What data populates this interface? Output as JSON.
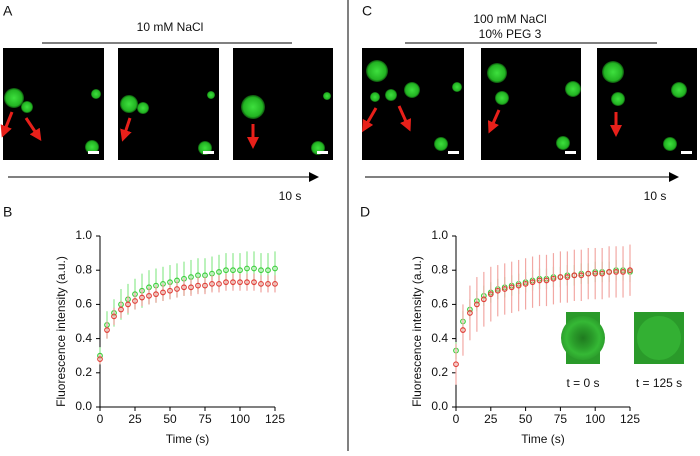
{
  "panels": [
    {
      "label": "A",
      "title": [
        "10 mM NaCl"
      ],
      "time_label": "10 s"
    },
    {
      "label": "C",
      "title": [
        "100 mM NaCl",
        "10% PEG 3"
      ],
      "time_label": "10 s"
    }
  ],
  "chart_data": [
    {
      "type": "scatter",
      "panel_label": "B",
      "y_label": "Fluorescence intensity (a.u.)",
      "x_label": "Time (s)",
      "xlim": [
        0,
        125
      ],
      "xticks": [
        0,
        25,
        50,
        75,
        100,
        125
      ],
      "ylim": [
        0,
        1
      ],
      "yticks": [
        {
          "value": 0,
          "label": "0.0"
        },
        {
          "value": 0.2,
          "label": "0.2"
        },
        {
          "value": 0.4,
          "label": "0.4"
        },
        {
          "value": 0.6,
          "label": "0.6"
        },
        {
          "value": 0.8,
          "label": "0.8"
        },
        {
          "value": 1,
          "label": "1.0"
        }
      ],
      "x": [
        0,
        5,
        10,
        15,
        20,
        25,
        30,
        35,
        40,
        45,
        50,
        55,
        60,
        65,
        70,
        75,
        80,
        85,
        90,
        95,
        100,
        105,
        110,
        115,
        120,
        125
      ],
      "series": [
        {
          "color": "#3fcf3f",
          "error_color": "#8ee88e",
          "values": [
            0.3,
            0.48,
            0.55,
            0.6,
            0.63,
            0.66,
            0.68,
            0.7,
            0.71,
            0.72,
            0.73,
            0.74,
            0.75,
            0.76,
            0.77,
            0.77,
            0.78,
            0.79,
            0.8,
            0.8,
            0.8,
            0.81,
            0.81,
            0.8,
            0.8,
            0.81
          ],
          "errors": [
            0.05,
            0.08,
            0.08,
            0.09,
            0.09,
            0.09,
            0.1,
            0.1,
            0.1,
            0.1,
            0.1,
            0.1,
            0.1,
            0.1,
            0.1,
            0.1,
            0.1,
            0.1,
            0.1,
            0.1,
            0.1,
            0.1,
            0.1,
            0.1,
            0.1,
            0.1
          ]
        },
        {
          "color": "#e0413a",
          "error_color": "#f0a09c",
          "values": [
            0.28,
            0.45,
            0.53,
            0.57,
            0.6,
            0.62,
            0.64,
            0.65,
            0.66,
            0.67,
            0.68,
            0.69,
            0.7,
            0.7,
            0.71,
            0.71,
            0.72,
            0.72,
            0.73,
            0.73,
            0.73,
            0.73,
            0.73,
            0.72,
            0.72,
            0.72
          ],
          "errors": [
            0.03,
            0.05,
            0.05,
            0.05,
            0.05,
            0.05,
            0.05,
            0.05,
            0.05,
            0.05,
            0.05,
            0.05,
            0.05,
            0.05,
            0.05,
            0.05,
            0.05,
            0.05,
            0.05,
            0.05,
            0.05,
            0.05,
            0.05,
            0.05,
            0.05,
            0.05
          ]
        }
      ]
    },
    {
      "type": "scatter",
      "panel_label": "D",
      "y_label": "Fluorescence intensity (a.u.)",
      "x_label": "Time (s)",
      "insets": [
        "t = 0 s",
        "t = 125 s"
      ],
      "xlim": [
        0,
        125
      ],
      "xticks": [
        0,
        25,
        50,
        75,
        100,
        125
      ],
      "ylim": [
        0,
        1
      ],
      "yticks": [
        {
          "value": 0,
          "label": "0.0"
        },
        {
          "value": 0.2,
          "label": "0.2"
        },
        {
          "value": 0.4,
          "label": "0.4"
        },
        {
          "value": 0.6,
          "label": "0.6"
        },
        {
          "value": 0.8,
          "label": "0.8"
        },
        {
          "value": 1,
          "label": "1.0"
        }
      ],
      "x": [
        0,
        5,
        10,
        15,
        20,
        25,
        30,
        35,
        40,
        45,
        50,
        55,
        60,
        65,
        70,
        75,
        80,
        85,
        90,
        95,
        100,
        105,
        110,
        115,
        120,
        125
      ],
      "series": [
        {
          "color": "#3fcf3f",
          "error_color": "#8ee88e",
          "values": [
            0.33,
            0.5,
            0.57,
            0.62,
            0.65,
            0.67,
            0.69,
            0.7,
            0.71,
            0.72,
            0.73,
            0.74,
            0.75,
            0.75,
            0.76,
            0.76,
            0.77,
            0.77,
            0.78,
            0.78,
            0.79,
            0.79,
            0.79,
            0.8,
            0.8,
            0.79
          ],
          "errors": [
            0.05,
            0.06,
            0.06,
            0.06,
            0.06,
            0.06,
            0.06,
            0.06,
            0.06,
            0.06,
            0.06,
            0.06,
            0.06,
            0.06,
            0.06,
            0.06,
            0.06,
            0.06,
            0.06,
            0.06,
            0.06,
            0.06,
            0.06,
            0.06,
            0.06,
            0.06
          ]
        },
        {
          "color": "#e0413a",
          "error_color": "#f2a8a4",
          "values": [
            0.25,
            0.45,
            0.55,
            0.6,
            0.63,
            0.66,
            0.68,
            0.69,
            0.7,
            0.71,
            0.72,
            0.73,
            0.74,
            0.74,
            0.75,
            0.76,
            0.76,
            0.77,
            0.77,
            0.78,
            0.78,
            0.78,
            0.79,
            0.79,
            0.79,
            0.8
          ],
          "errors": [
            0.12,
            0.15,
            0.16,
            0.16,
            0.16,
            0.16,
            0.15,
            0.15,
            0.15,
            0.15,
            0.15,
            0.15,
            0.15,
            0.15,
            0.15,
            0.15,
            0.15,
            0.15,
            0.15,
            0.15,
            0.15,
            0.15,
            0.15,
            0.15,
            0.15,
            0.15
          ]
        }
      ]
    }
  ]
}
